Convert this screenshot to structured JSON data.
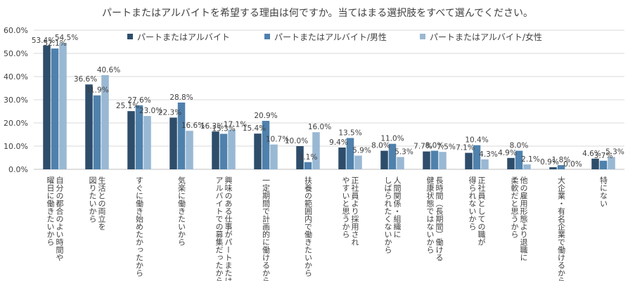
{
  "chart_data": {
    "type": "bar",
    "title": "パートまたはアルバイトを希望する理由は何ですか。当てはまる選択肢をすべて選んでください。",
    "ylim": [
      0,
      60
    ],
    "yticks": [
      "0.0%",
      "10.0%",
      "20.0%",
      "30.0%",
      "40.0%",
      "50.0%",
      "60.0%"
    ],
    "grid": true,
    "legend_position": "top",
    "categories": [
      [
        "曜日に働きたいから",
        "自分の都合のよい時間や"
      ],
      [
        "図りたいから",
        "生活との両立を"
      ],
      [
        "すぐに働き始めたかったから"
      ],
      [
        "気楽に働きたいから"
      ],
      [
        "アルバイトでの募集だったから",
        "興味のある仕事がパートまたは"
      ],
      [
        "一定期間で計画的に働けるから"
      ],
      [
        "扶養の範囲内で働きたいから"
      ],
      [
        "やすいと思うから",
        "正社員より採用され"
      ],
      [
        "しばられたくないから",
        "人間関係・組織に"
      ],
      [
        "健康状態ではないから",
        "長時間（長期間）働ける"
      ],
      [
        "得られないから",
        "正社員としての職が"
      ],
      [
        "柔軟だと思うから",
        "他の雇用形態より退職に"
      ],
      [
        "大企業・有名企業で働けるから"
      ],
      [
        "特にない"
      ]
    ],
    "series": [
      {
        "name": "パートまたはアルバイト",
        "color": "#2e4d6b",
        "values": [
          53.4,
          36.6,
          25.1,
          22.3,
          16.3,
          15.4,
          10.0,
          9.4,
          8.0,
          7.7,
          7.1,
          4.9,
          0.9,
          4.6
        ],
        "labels": [
          "53.4%",
          "36.6%",
          "25.1%",
          "22.3%",
          "16.3%",
          "15.4%",
          "10.0%",
          "9.4%",
          "8.0%",
          "7.7%",
          "7.1%",
          "4.9%",
          "0.9%",
          "4.6%"
        ]
      },
      {
        "name": "パートまたはアルバイト/男性",
        "color": "#4f81ad",
        "values": [
          52.1,
          31.9,
          27.6,
          28.8,
          15.3,
          20.9,
          3.1,
          13.5,
          11.0,
          8.0,
          10.4,
          8.0,
          1.8,
          3.7
        ],
        "labels": [
          "52.1%",
          "31.9%",
          "27.6%",
          "28.8%",
          "15.3%",
          "20.9%",
          "3.1%",
          "13.5%",
          "11.0%",
          "8.0%",
          "10.4%",
          "8.0%",
          "1.8%",
          "3.7%"
        ]
      },
      {
        "name": "パートまたはアルバイト/女性",
        "color": "#99b8d3",
        "values": [
          54.5,
          40.6,
          23.0,
          16.6,
          17.1,
          10.7,
          16.0,
          5.9,
          5.3,
          7.5,
          4.3,
          2.1,
          0.0,
          5.3
        ],
        "labels": [
          "54.5%",
          "40.6%",
          "23.0%",
          "16.6%",
          "17.1%",
          "10.7%",
          "16.0%",
          "5.9%",
          "5.3%",
          "7.5%",
          "4.3%",
          "2.1%",
          "0.0%",
          "5.3%"
        ]
      }
    ]
  }
}
